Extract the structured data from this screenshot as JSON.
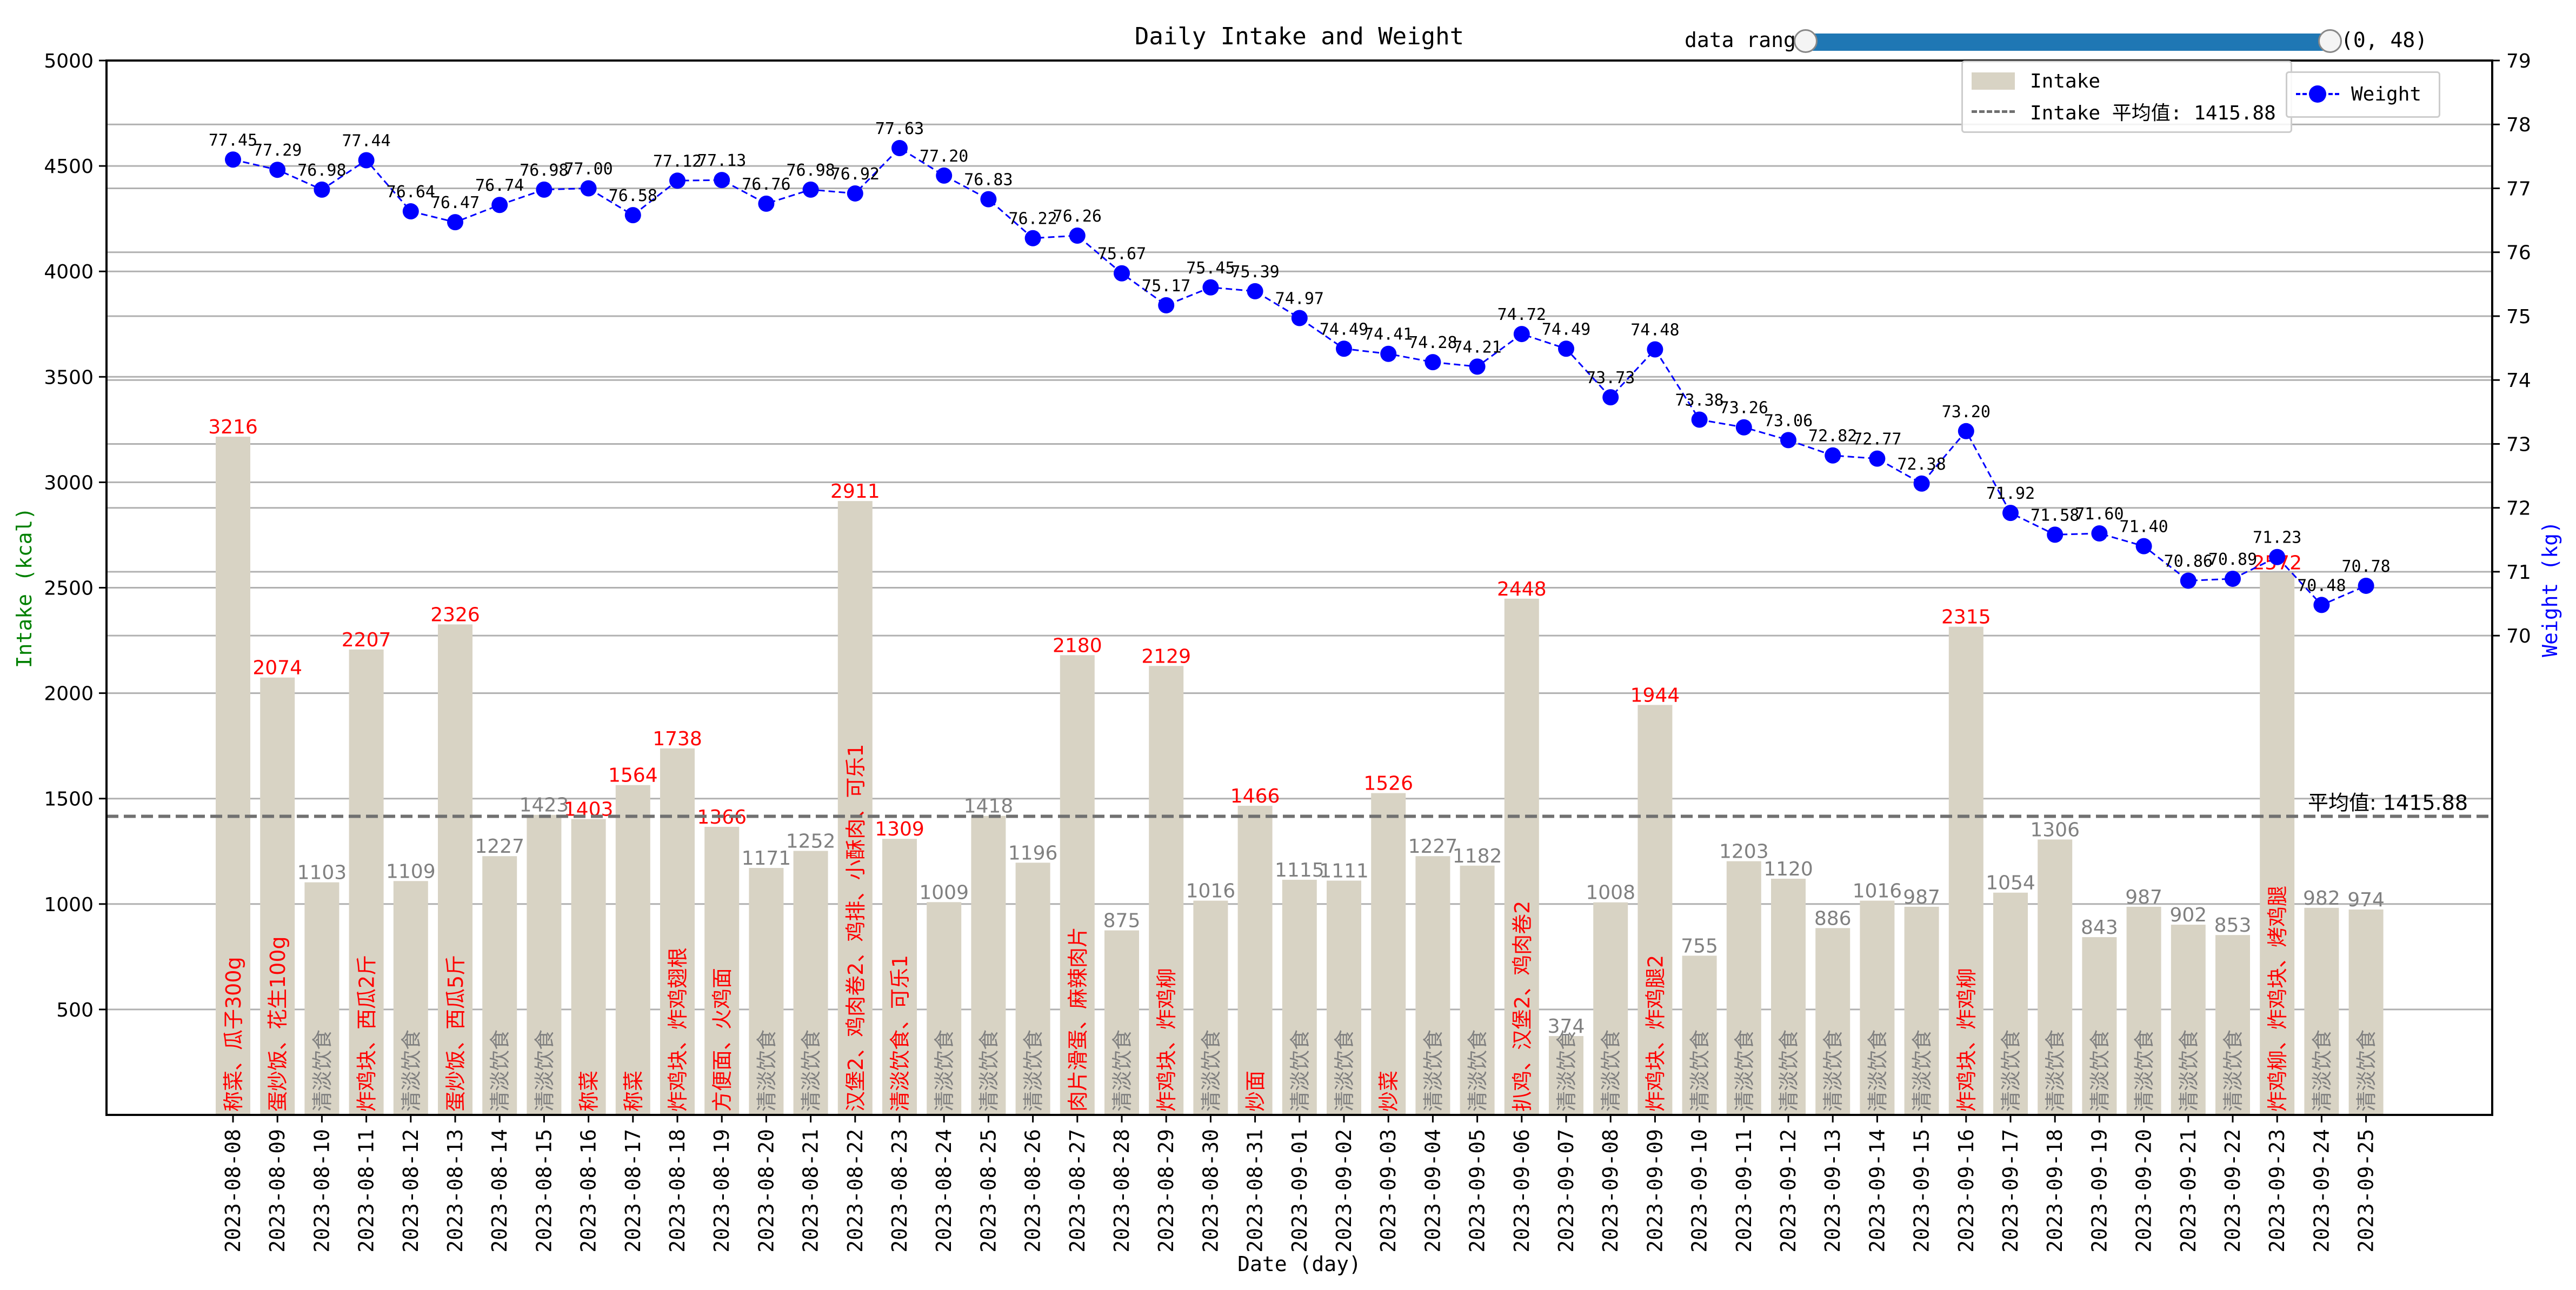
{
  "chart_data": {
    "type": "bar+line",
    "title": "Daily Intake and Weight",
    "xlabel": "Date (day)",
    "ylabel_left": "Intake (kcal)",
    "ylabel_right": "Weight (kg)",
    "ylim_left": [
      0,
      5000
    ],
    "ylim_right": [
      62.5,
      79
    ],
    "yticks_left": [
      500,
      1000,
      1500,
      2000,
      2500,
      3000,
      3500,
      4000,
      4500,
      5000
    ],
    "yticks_right": [
      70,
      71,
      72,
      73,
      74,
      75,
      76,
      77,
      78,
      79
    ],
    "grid": "horizontal",
    "categories": [
      "2023-08-08",
      "2023-08-09",
      "2023-08-10",
      "2023-08-11",
      "2023-08-12",
      "2023-08-13",
      "2023-08-14",
      "2023-08-15",
      "2023-08-16",
      "2023-08-17",
      "2023-08-18",
      "2023-08-19",
      "2023-08-20",
      "2023-08-21",
      "2023-08-22",
      "2023-08-23",
      "2023-08-24",
      "2023-08-25",
      "2023-08-26",
      "2023-08-27",
      "2023-08-28",
      "2023-08-29",
      "2023-08-30",
      "2023-08-31",
      "2023-09-01",
      "2023-09-02",
      "2023-09-03",
      "2023-09-04",
      "2023-09-05",
      "2023-09-06",
      "2023-09-07",
      "2023-09-08",
      "2023-09-09",
      "2023-09-10",
      "2023-09-11",
      "2023-09-12",
      "2023-09-13",
      "2023-09-14",
      "2023-09-15",
      "2023-09-16",
      "2023-09-17",
      "2023-09-18",
      "2023-09-19",
      "2023-09-20",
      "2023-09-21",
      "2023-09-22",
      "2023-09-23",
      "2023-09-24",
      "2023-09-25"
    ],
    "series": [
      {
        "name": "Intake",
        "axis": "left",
        "color": "#d8d3c4",
        "values": [
          3216,
          2074,
          1103,
          2207,
          1109,
          2326,
          1227,
          1423,
          1403,
          1564,
          1738,
          1366,
          1171,
          1252,
          2911,
          1309,
          1009,
          1418,
          1196,
          2180,
          875,
          2129,
          1016,
          1466,
          1115,
          1111,
          1526,
          1227,
          1182,
          2448,
          374,
          1008,
          1944,
          755,
          1203,
          1120,
          886,
          1016,
          987,
          2315,
          1054,
          1306,
          843,
          987,
          902,
          853,
          2572,
          982,
          974
        ],
        "highlight": [
          true,
          true,
          false,
          true,
          false,
          true,
          false,
          false,
          true,
          true,
          true,
          true,
          false,
          false,
          true,
          true,
          false,
          false,
          false,
          true,
          false,
          true,
          false,
          true,
          false,
          false,
          true,
          false,
          false,
          true,
          false,
          false,
          true,
          false,
          false,
          false,
          false,
          false,
          false,
          true,
          false,
          false,
          false,
          false,
          false,
          false,
          true,
          false,
          false
        ],
        "notes": [
          "称菜、瓜子300g",
          "蛋炒饭、花生100g",
          "清淡饮食",
          "炸鸡块、西瓜2斤",
          "清淡饮食",
          "蛋炒饭、西瓜5斤",
          "清淡饮食",
          "清淡饮食",
          "称菜",
          "称菜",
          "炸鸡块、炸鸡翅根",
          "方便面、火鸡面",
          "清淡饮食",
          "清淡饮食",
          "汉堡2、鸡肉卷2、鸡排、小酥肉、可乐1",
          "清淡饮食、可乐1",
          "清淡饮食",
          "清淡饮食",
          "清淡饮食",
          "肉片滑蛋、麻辣肉片",
          "清淡饮食",
          "炸鸡块、炸鸡柳",
          "清淡饮食",
          "炒面",
          "清淡饮食",
          "清淡饮食",
          "炒菜",
          "清淡饮食",
          "清淡饮食",
          "扒鸡、汉堡2、鸡肉卷2",
          "清淡饮食",
          "清淡饮食",
          "炸鸡块、炸鸡腿2",
          "清淡饮食",
          "清淡饮食",
          "清淡饮食",
          "清淡饮食",
          "清淡饮食",
          "清淡饮食",
          "炸鸡块、炸鸡柳",
          "清淡饮食",
          "清淡饮食",
          "清淡饮食",
          "清淡饮食",
          "清淡饮食",
          "清淡饮食",
          "炸鸡柳、炸鸡块、烤鸡腿",
          "清淡饮食",
          "清淡饮食"
        ]
      },
      {
        "name": "Weight",
        "axis": "right",
        "color": "#0000ff",
        "values": [
          77.45,
          77.29,
          76.98,
          77.44,
          76.64,
          76.47,
          76.74,
          76.98,
          77.0,
          76.58,
          77.12,
          77.13,
          76.76,
          76.98,
          76.92,
          77.63,
          77.2,
          76.83,
          76.22,
          76.26,
          75.67,
          75.17,
          75.45,
          75.39,
          74.97,
          74.49,
          74.41,
          74.28,
          74.21,
          74.72,
          74.49,
          73.73,
          74.48,
          73.38,
          73.26,
          73.06,
          72.82,
          72.77,
          72.38,
          73.2,
          71.92,
          71.58,
          71.6,
          71.4,
          70.86,
          70.89,
          71.23,
          70.48,
          70.78
        ]
      }
    ],
    "mean": {
      "value": 1415.88,
      "legend_label": "Intake 平均值: 1415.88",
      "annotation": "平均值: 1415.88"
    },
    "legend_placement": "top-right"
  },
  "colors": {
    "normal_label": "#808080",
    "highlight_label": "#ff0000",
    "ylabel_left": "#008000",
    "ylabel_right": "#0000ff",
    "mean_line": "#707070"
  },
  "range_slider": {
    "label": "data range",
    "value": "(0, 48)"
  }
}
